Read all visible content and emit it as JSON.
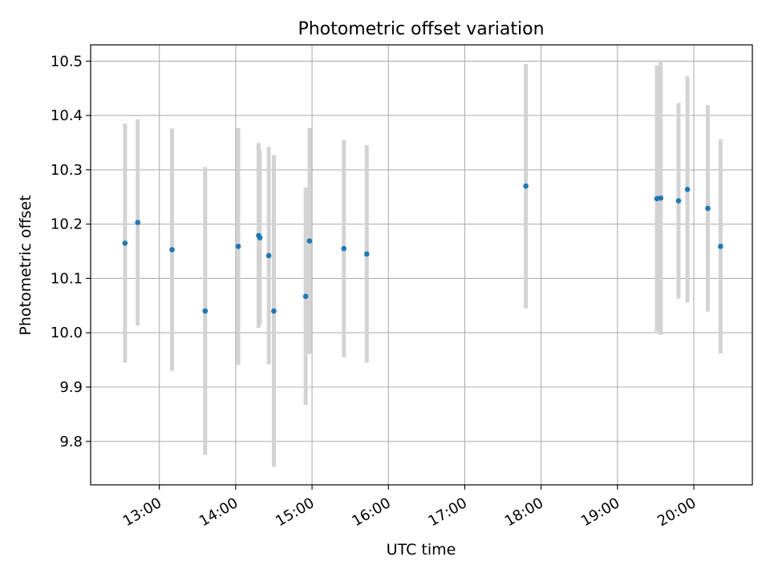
{
  "chart_data": {
    "type": "scatter",
    "title": "Photometric offset variation",
    "xlabel": "UTC time",
    "ylabel": "Photometric offset",
    "x_tick_labels": [
      "13:00",
      "14:00",
      "15:00",
      "16:00",
      "17:00",
      "18:00",
      "19:00",
      "20:00"
    ],
    "y_tick_labels": [
      "9.8",
      "9.9",
      "10.0",
      "10.1",
      "10.2",
      "10.3",
      "10.4",
      "10.5"
    ],
    "xlim": [
      "12:06",
      "20:46"
    ],
    "ylim": [
      9.72,
      10.53
    ],
    "grid": true,
    "point_color": "#1f77b4",
    "errorbar_color": "#d3d3d3",
    "points": [
      {
        "x": "12:33",
        "y": 10.165,
        "err": 0.22
      },
      {
        "x": "12:43",
        "y": 10.203,
        "err": 0.19
      },
      {
        "x": "13:10",
        "y": 10.153,
        "err": 0.223
      },
      {
        "x": "13:36",
        "y": 10.04,
        "err": 0.265
      },
      {
        "x": "14:02",
        "y": 10.159,
        "err": 0.218
      },
      {
        "x": "14:18",
        "y": 10.179,
        "err": 0.17
      },
      {
        "x": "14:19",
        "y": 10.175,
        "err": 0.16
      },
      {
        "x": "14:26",
        "y": 10.142,
        "err": 0.2
      },
      {
        "x": "14:30",
        "y": 10.04,
        "err": 0.287
      },
      {
        "x": "14:55",
        "y": 10.067,
        "err": 0.2
      },
      {
        "x": "14:58",
        "y": 10.169,
        "err": 0.208
      },
      {
        "x": "15:25",
        "y": 10.155,
        "err": 0.2
      },
      {
        "x": "15:43",
        "y": 10.145,
        "err": 0.2
      },
      {
        "x": "17:48",
        "y": 10.27,
        "err": 0.225
      },
      {
        "x": "19:31",
        "y": 10.247,
        "err": 0.245
      },
      {
        "x": "19:34",
        "y": 10.248,
        "err": 0.252
      },
      {
        "x": "19:48",
        "y": 10.243,
        "err": 0.18
      },
      {
        "x": "19:55",
        "y": 10.264,
        "err": 0.208
      },
      {
        "x": "20:11",
        "y": 10.229,
        "err": 0.19
      },
      {
        "x": "20:21",
        "y": 10.159,
        "err": 0.197
      }
    ]
  }
}
